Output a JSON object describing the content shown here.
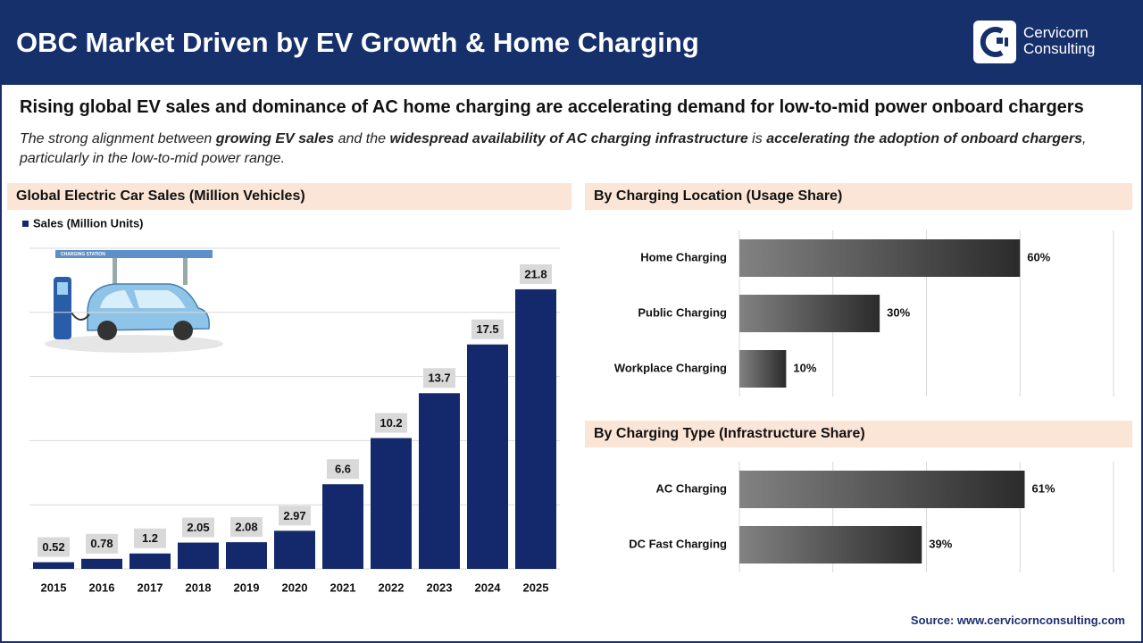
{
  "header": {
    "title": "OBC Market Driven by EV Growth & Home Charging",
    "brand": [
      "Cervicorn",
      "Consulting"
    ]
  },
  "headline": "Rising global EV sales and dominance of AC home charging are accelerating demand for low-to-mid power onboard chargers",
  "description": [
    {
      "text": "The strong alignment between ",
      "bold": false
    },
    {
      "text": "growing EV sales",
      "bold": true
    },
    {
      "text": " and the ",
      "bold": false
    },
    {
      "text": "widespread availability of AC charging infrastructure",
      "bold": true
    },
    {
      "text": " is ",
      "bold": false
    },
    {
      "text": "accelerating the adoption of onboard chargers",
      "bold": true
    },
    {
      "text": ", particularly in the low-to-mid power range.",
      "bold": false
    }
  ],
  "illustration_label": "CHARGING STATION",
  "chart_data": [
    {
      "type": "bar",
      "title": "Global Electric Car Sales (Million Vehicles)",
      "categories": [
        "2015",
        "2016",
        "2017",
        "2018",
        "2019",
        "2020",
        "2021",
        "2022",
        "2023",
        "2024",
        "2025"
      ],
      "series": [
        {
          "name": "Sales (Million Units)",
          "color": "#14296b",
          "values": [
            0.52,
            0.78,
            1.2,
            2.05,
            2.08,
            2.97,
            6.6,
            10.2,
            13.7,
            17.5,
            21.8
          ]
        }
      ],
      "ylim": [
        0,
        25
      ],
      "yticks": [
        0,
        5,
        10,
        15,
        20,
        25
      ],
      "grid": true
    },
    {
      "type": "hbar",
      "title": "By Charging Location (Usage Share)",
      "categories": [
        "Home Charging",
        "Public Charging",
        "Workplace Charging"
      ],
      "values": [
        60,
        30,
        10
      ],
      "value_labels": [
        "60%",
        "30%",
        "10%"
      ],
      "gradient": [
        "#828282",
        "#2b2b2b"
      ],
      "xlim": [
        0,
        80
      ],
      "xticks": [
        0,
        20,
        40,
        60,
        80
      ],
      "grid": true
    },
    {
      "type": "hbar",
      "title": "By Charging Type (Infrastructure Share)",
      "categories": [
        "AC Charging",
        "DC Fast Charging"
      ],
      "values": [
        61,
        39
      ],
      "value_labels": [
        "61%",
        "39%"
      ],
      "gradient": [
        "#828282",
        "#2b2b2b"
      ],
      "xlim": [
        0,
        80
      ],
      "xticks": [
        0,
        20,
        40,
        60,
        80
      ],
      "grid": true
    }
  ],
  "source": "Source: www.cervicornconsulting.com"
}
